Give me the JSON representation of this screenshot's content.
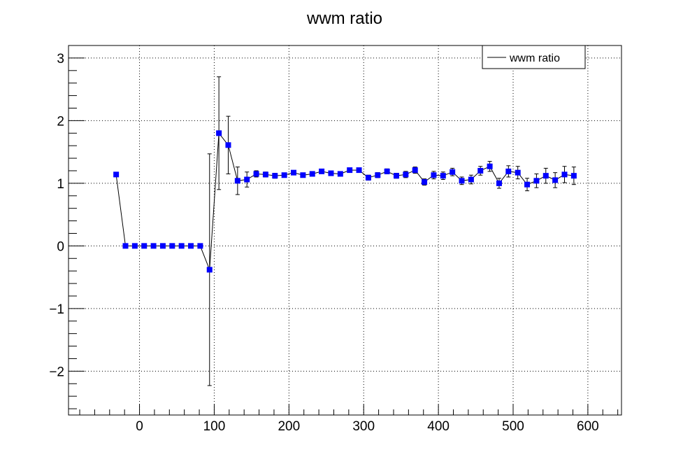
{
  "chart_data": {
    "type": "scatter",
    "title": "wwm ratio",
    "xlabel": "",
    "ylabel": "",
    "xlim": [
      -95,
      645
    ],
    "ylim": [
      -2.7,
      3.2
    ],
    "grid": true,
    "legend": {
      "placement": "top-right",
      "entries": [
        "wwm ratio"
      ]
    },
    "x_ticks": [
      0,
      100,
      200,
      300,
      400,
      500,
      600
    ],
    "x_tick_labels": [
      "0",
      "100",
      "200",
      "300",
      "400",
      "500",
      "600"
    ],
    "y_ticks": [
      -2,
      -1,
      0,
      1,
      2,
      3
    ],
    "y_tick_labels": [
      "−2",
      "−1",
      "0",
      "1",
      "2",
      "3"
    ],
    "colors": {
      "marker": "#0000ff",
      "line": "#000000"
    },
    "series": [
      {
        "name": "wwm ratio",
        "points": [
          {
            "x": -31.25,
            "y": 1.14,
            "err": 0
          },
          {
            "x": -18.75,
            "y": 0,
            "err": 0
          },
          {
            "x": -6.25,
            "y": 0,
            "err": 0
          },
          {
            "x": 6.25,
            "y": 0,
            "err": 0
          },
          {
            "x": 18.75,
            "y": 0,
            "err": 0
          },
          {
            "x": 31.25,
            "y": 0,
            "err": 0
          },
          {
            "x": 43.75,
            "y": 0,
            "err": 0
          },
          {
            "x": 56.25,
            "y": 0,
            "err": 0
          },
          {
            "x": 68.75,
            "y": 0,
            "err": 0
          },
          {
            "x": 81.25,
            "y": 0,
            "err": 0
          },
          {
            "x": 93.75,
            "y": -0.38,
            "err": 1.85
          },
          {
            "x": 106.25,
            "y": 1.8,
            "err": 0.9
          },
          {
            "x": 118.75,
            "y": 1.61,
            "err": 0.46
          },
          {
            "x": 131.25,
            "y": 1.04,
            "err": 0.22
          },
          {
            "x": 143.75,
            "y": 1.06,
            "err": 0.12
          },
          {
            "x": 156.25,
            "y": 1.15,
            "err": 0.05
          },
          {
            "x": 168.75,
            "y": 1.14,
            "err": 0.04
          },
          {
            "x": 181.25,
            "y": 1.12,
            "err": 0.04
          },
          {
            "x": 193.75,
            "y": 1.13,
            "err": 0.03
          },
          {
            "x": 206.25,
            "y": 1.17,
            "err": 0.03
          },
          {
            "x": 218.75,
            "y": 1.13,
            "err": 0.03
          },
          {
            "x": 231.25,
            "y": 1.15,
            "err": 0.03
          },
          {
            "x": 243.75,
            "y": 1.19,
            "err": 0.03
          },
          {
            "x": 256.25,
            "y": 1.16,
            "err": 0.03
          },
          {
            "x": 268.75,
            "y": 1.15,
            "err": 0.03
          },
          {
            "x": 281.25,
            "y": 1.21,
            "err": 0.03
          },
          {
            "x": 293.75,
            "y": 1.21,
            "err": 0.03
          },
          {
            "x": 306.25,
            "y": 1.09,
            "err": 0.04
          },
          {
            "x": 318.75,
            "y": 1.13,
            "err": 0.04
          },
          {
            "x": 331.25,
            "y": 1.19,
            "err": 0.04
          },
          {
            "x": 343.75,
            "y": 1.12,
            "err": 0.04
          },
          {
            "x": 356.25,
            "y": 1.14,
            "err": 0.05
          },
          {
            "x": 368.75,
            "y": 1.21,
            "err": 0.05
          },
          {
            "x": 381.25,
            "y": 1.02,
            "err": 0.05
          },
          {
            "x": 393.75,
            "y": 1.13,
            "err": 0.06
          },
          {
            "x": 406.25,
            "y": 1.12,
            "err": 0.06
          },
          {
            "x": 418.75,
            "y": 1.18,
            "err": 0.06
          },
          {
            "x": 431.25,
            "y": 1.04,
            "err": 0.06
          },
          {
            "x": 443.75,
            "y": 1.06,
            "err": 0.07
          },
          {
            "x": 456.25,
            "y": 1.2,
            "err": 0.07
          },
          {
            "x": 468.75,
            "y": 1.27,
            "err": 0.08
          },
          {
            "x": 481.25,
            "y": 1.0,
            "err": 0.08
          },
          {
            "x": 493.75,
            "y": 1.19,
            "err": 0.09
          },
          {
            "x": 506.25,
            "y": 1.17,
            "err": 0.1
          },
          {
            "x": 518.75,
            "y": 0.98,
            "err": 0.1
          },
          {
            "x": 531.25,
            "y": 1.04,
            "err": 0.11
          },
          {
            "x": 543.75,
            "y": 1.12,
            "err": 0.12
          },
          {
            "x": 556.25,
            "y": 1.05,
            "err": 0.12
          },
          {
            "x": 568.75,
            "y": 1.14,
            "err": 0.13
          },
          {
            "x": 581.25,
            "y": 1.12,
            "err": 0.14
          }
        ]
      }
    ]
  }
}
